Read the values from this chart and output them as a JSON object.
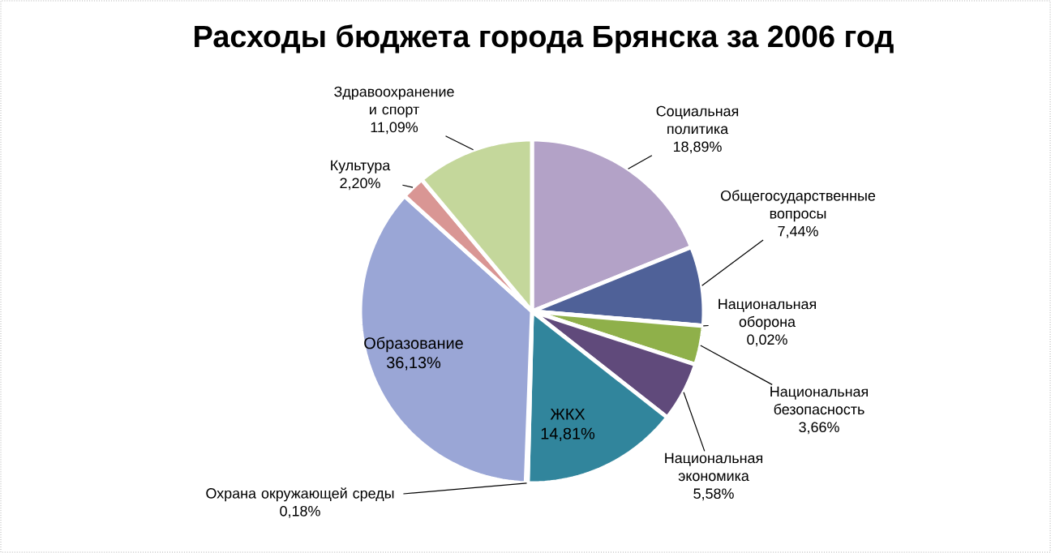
{
  "chart_data": {
    "type": "pie",
    "title": "Расходы бюджета города Брянска за 2006 год",
    "categories": [
      "Социальная политика",
      "Общегосударственные вопросы",
      "Национальная оборона",
      "Национальная безопасность",
      "Национальная экономика",
      "ЖКХ",
      "Охрана окружающей среды",
      "Образование",
      "Культура",
      "Здравоохранение и спорт"
    ],
    "values": [
      18.89,
      7.44,
      0.02,
      3.66,
      5.58,
      14.81,
      0.18,
      36.13,
      2.2,
      11.09
    ],
    "value_labels": [
      "18,89%",
      "7,44%",
      "0,02%",
      "3,66%",
      "5,58%",
      "14,81%",
      "0,18%",
      "36,13%",
      "2,20%",
      "11,09%"
    ],
    "colors": [
      "#b3a2c7",
      "#4f6198",
      "#c0504d",
      "#8fb04a",
      "#604a7b",
      "#31859c",
      "#f79646",
      "#9aa6d6",
      "#d99694",
      "#c4d79b"
    ]
  }
}
